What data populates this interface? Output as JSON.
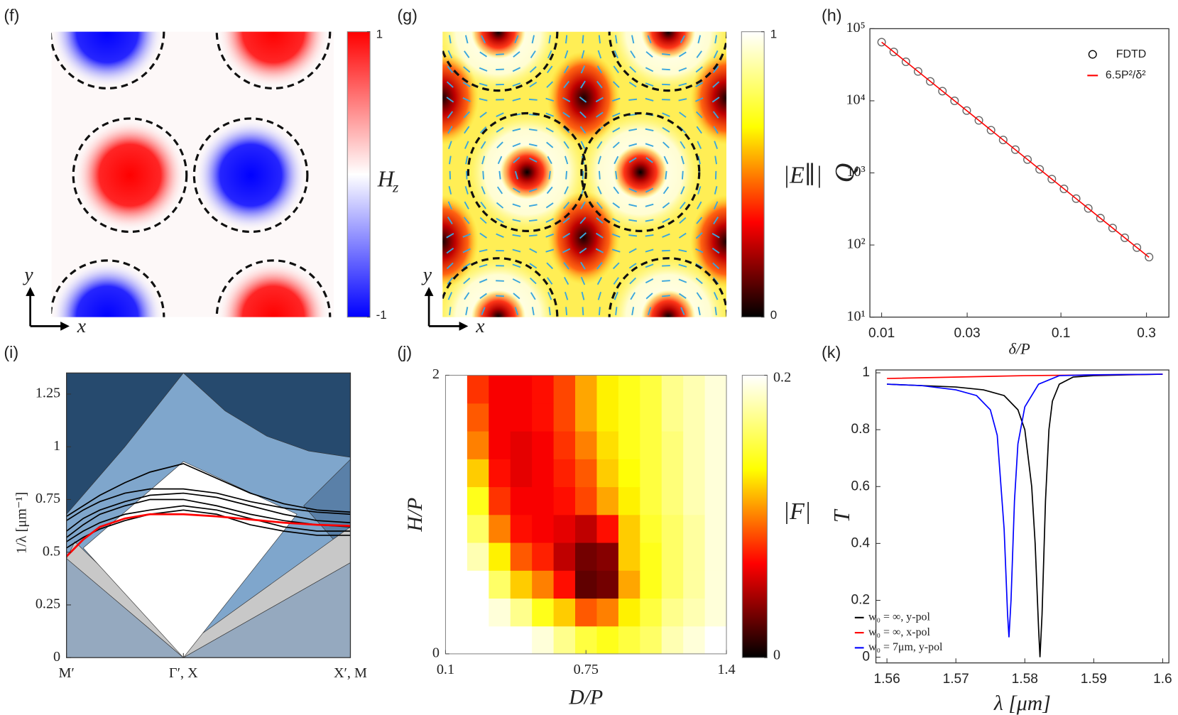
{
  "chart_data": [
    {
      "type": "field",
      "panel_label": "(f)",
      "x_label": "x",
      "y_label": "y",
      "colorbar": {
        "label": "H",
        "label_sub": "z",
        "lim": [
          -1,
          1
        ],
        "ticks": [
          -1,
          1
        ],
        "colors": [
          "#0000ff",
          "#ffffff",
          "#ff0000"
        ]
      }
    },
    {
      "type": "field",
      "panel_label": "(g)",
      "x_label": "x",
      "y_label": "y",
      "colorbar": {
        "label": "|E∥|",
        "lim": [
          0,
          1
        ],
        "ticks": [
          0,
          1
        ],
        "colors": [
          "#000000",
          "#ff0000",
          "#ffff00",
          "#ffffff"
        ]
      }
    },
    {
      "type": "scatter",
      "panel_label": "(h)",
      "x_label": "δ/P",
      "y_label": "Q",
      "log_x": true,
      "log_y": true,
      "xlim": [
        0.0086,
        0.4
      ],
      "ylim": [
        10,
        100000
      ],
      "xticks": [
        0.01,
        0.03,
        0.1,
        0.3
      ],
      "yticks": [
        {
          "value": 10,
          "label": "10¹"
        },
        {
          "value": 100,
          "label": "10²"
        },
        {
          "value": 1000,
          "label": "10³"
        },
        {
          "value": 10000,
          "label": "10⁴"
        },
        {
          "value": 100000,
          "label": "10⁵"
        }
      ],
      "legend": "upper right",
      "series": [
        {
          "name": "FDTD",
          "mode": "markers",
          "color": "#666666",
          "x": [
            0.01,
            0.01169,
            0.01366,
            0.01597,
            0.01867,
            0.02183,
            0.02551,
            0.02982,
            0.03486,
            0.04075,
            0.04764,
            0.05568,
            0.06509,
            0.07609,
            0.08896,
            0.104,
            0.1216,
            0.1421,
            0.1661,
            0.1942,
            0.227,
            0.2653,
            0.3101
          ],
          "values": [
            65000,
            47600,
            34800,
            25500,
            18600,
            13600,
            9990,
            7310,
            5350,
            3910,
            2860,
            2100,
            1530,
            1120,
            821,
            601,
            440,
            322,
            236,
            172,
            126,
            92,
            68
          ]
        },
        {
          "name": "6.5P²/δ²",
          "mode": "line",
          "color": "#ff0000",
          "x": [
            0.01,
            0.31
          ],
          "values": [
            65000,
            67.6
          ]
        }
      ]
    },
    {
      "type": "line",
      "panel_label": "(i)",
      "y_label": "1/λ [μm⁻¹]",
      "xlim": [
        0,
        1.7
      ],
      "ylim": [
        0,
        1.35
      ],
      "xticks": [
        {
          "value": 0,
          "label": "M′"
        },
        {
          "value": 0.7,
          "label": "Γ′, X"
        },
        {
          "value": 1.7,
          "label": "X′, M"
        }
      ],
      "yticks": [
        0,
        0.25,
        0.5,
        0.75,
        1,
        1.25
      ],
      "regions": [
        {
          "color": "#264a6e",
          "x": [
            0,
            1.7,
            1.7,
            0
          ],
          "values": [
            0,
            0,
            1.35,
            1.35
          ]
        },
        {
          "color": "#7fa6cc",
          "x": [
            0,
            0.35,
            0.7,
            0.95,
            1.2,
            1.45,
            1.7,
            1.7,
            0
          ],
          "values": [
            0.68,
            1.0,
            1.35,
            1.17,
            1.05,
            0.98,
            0.95,
            0,
            0
          ]
        },
        {
          "color": "#5a80a8",
          "x": [
            1.7,
            1.7,
            1.42
          ],
          "values": [
            0.94,
            0.47,
            0.72
          ]
        },
        {
          "color": "#c8c8c8",
          "x": [
            0,
            0.7,
            1.7,
            1.7,
            0.7,
            0.05
          ],
          "values": [
            0.47,
            0,
            0.45,
            0.62,
            0.05,
            0.55
          ]
        },
        {
          "color": "#ffffff",
          "x": [
            0.7,
            1.38,
            0.7,
            0.1
          ],
          "values": [
            0,
            0.68,
            0.93,
            0.52
          ]
        },
        {
          "color": "#95a9bf",
          "x": [
            0,
            0,
            0.7,
            1.7,
            1.7
          ],
          "values": [
            0,
            0.47,
            0,
            0.45,
            0
          ]
        }
      ],
      "x": [
        0,
        0.1,
        0.2,
        0.35,
        0.5,
        0.7,
        0.9,
        1.1,
        1.3,
        1.5,
        1.7
      ],
      "series": [
        {
          "color": "#000000",
          "values": [
            0.67,
            0.72,
            0.77,
            0.83,
            0.88,
            0.92,
            0.85,
            0.78,
            0.73,
            0.7,
            0.69
          ]
        },
        {
          "color": "#000000",
          "values": [
            0.65,
            0.7,
            0.74,
            0.78,
            0.8,
            0.8,
            0.78,
            0.74,
            0.71,
            0.69,
            0.68
          ]
        },
        {
          "color": "#000000",
          "values": [
            0.6,
            0.66,
            0.7,
            0.74,
            0.77,
            0.78,
            0.76,
            0.72,
            0.68,
            0.65,
            0.64
          ]
        },
        {
          "color": "#000000",
          "values": [
            0.57,
            0.63,
            0.68,
            0.72,
            0.75,
            0.75,
            0.72,
            0.68,
            0.65,
            0.63,
            0.62
          ]
        },
        {
          "color": "#000000",
          "values": [
            0.55,
            0.6,
            0.64,
            0.68,
            0.7,
            0.72,
            0.7,
            0.66,
            0.62,
            0.6,
            0.6
          ]
        },
        {
          "color": "#000000",
          "values": [
            0.52,
            0.57,
            0.61,
            0.65,
            0.68,
            0.7,
            0.68,
            0.63,
            0.6,
            0.58,
            0.58
          ]
        },
        {
          "color": "#ff0000",
          "values": [
            0.48,
            0.56,
            0.62,
            0.66,
            0.68,
            0.68,
            0.67,
            0.655,
            0.64,
            0.63,
            0.625
          ]
        }
      ]
    },
    {
      "type": "heatmap",
      "panel_label": "(j)",
      "x_label": "D/P",
      "y_label": "H/P",
      "xlim": [
        0.1,
        1.4
      ],
      "ylim": [
        0,
        2
      ],
      "xticks": [
        0.1,
        0.75,
        1.4
      ],
      "yticks": [
        0,
        2
      ],
      "x": [
        0.15,
        0.25,
        0.35,
        0.45,
        0.55,
        0.65,
        0.75,
        0.85,
        0.95,
        1.05,
        1.15,
        1.25,
        1.35
      ],
      "y": [
        0.1,
        0.3,
        0.5,
        0.7,
        0.9,
        1.1,
        1.3,
        1.5,
        1.7,
        1.9
      ],
      "z": [
        [
          0.2,
          0.2,
          0.2,
          0.2,
          0.19,
          0.17,
          0.15,
          0.14,
          0.15,
          0.16,
          0.18,
          0.19,
          0.2
        ],
        [
          0.2,
          0.2,
          0.19,
          0.17,
          0.14,
          0.12,
          0.09,
          0.1,
          0.13,
          0.15,
          0.17,
          0.18,
          0.19
        ],
        [
          0.2,
          0.2,
          0.16,
          0.12,
          0.1,
          0.07,
          0.025,
          0.03,
          0.11,
          0.14,
          0.16,
          0.175,
          0.19
        ],
        [
          0.2,
          0.18,
          0.13,
          0.09,
          0.075,
          0.05,
          0.03,
          0.035,
          0.12,
          0.14,
          0.16,
          0.175,
          0.19
        ],
        [
          0.2,
          0.16,
          0.1,
          0.07,
          0.065,
          0.06,
          0.05,
          0.07,
          0.12,
          0.145,
          0.16,
          0.175,
          0.19
        ],
        [
          0.2,
          0.14,
          0.08,
          0.065,
          0.065,
          0.07,
          0.085,
          0.11,
          0.13,
          0.15,
          0.165,
          0.18,
          0.19
        ],
        [
          0.2,
          0.12,
          0.07,
          0.06,
          0.065,
          0.075,
          0.09,
          0.12,
          0.135,
          0.15,
          0.165,
          0.18,
          0.19
        ],
        [
          0.2,
          0.1,
          0.065,
          0.06,
          0.065,
          0.08,
          0.1,
          0.125,
          0.14,
          0.15,
          0.165,
          0.18,
          0.19
        ],
        [
          0.2,
          0.09,
          0.065,
          0.065,
          0.07,
          0.085,
          0.11,
          0.13,
          0.14,
          0.15,
          0.17,
          0.18,
          0.19
        ],
        [
          0.2,
          0.08,
          0.065,
          0.065,
          0.07,
          0.085,
          0.11,
          0.13,
          0.14,
          0.15,
          0.17,
          0.18,
          0.19
        ]
      ],
      "colorbar": {
        "label": "|F|",
        "lim": [
          0,
          0.2
        ],
        "ticks": [
          0,
          0.2
        ],
        "colors": [
          "#000000",
          "#ff0000",
          "#ffff00",
          "#ffffff"
        ]
      }
    },
    {
      "type": "line",
      "panel_label": "(k)",
      "x_label": "λ [μm]",
      "y_label": "T",
      "xlim": [
        1.5584,
        1.6009
      ],
      "ylim": [
        -0.02,
        1.01
      ],
      "xticks": [
        1.56,
        1.57,
        1.58,
        1.59,
        1.6
      ],
      "yticks": [
        0,
        0.2,
        0.4,
        0.6,
        0.8,
        1
      ],
      "legend": "lower left",
      "series": [
        {
          "name": "w₀ = ∞, y-pol",
          "color": "#000000",
          "x": [
            1.56,
            1.565,
            1.57,
            1.574,
            1.577,
            1.579,
            1.58,
            1.581,
            1.5815,
            1.582,
            1.5822,
            1.5825,
            1.583,
            1.5835,
            1.584,
            1.585,
            1.587,
            1.59,
            1.595,
            1.6
          ],
          "values": [
            0.96,
            0.955,
            0.95,
            0.94,
            0.92,
            0.87,
            0.8,
            0.6,
            0.4,
            0.1,
            0.0,
            0.15,
            0.55,
            0.8,
            0.9,
            0.96,
            0.985,
            0.99,
            0.993,
            0.995
          ]
        },
        {
          "name": "w₀ = ∞, x-pol",
          "color": "#ff0000",
          "x": [
            1.56,
            1.58,
            1.6
          ],
          "values": [
            0.98,
            0.99,
            0.995
          ]
        },
        {
          "name": "w₀ = 7μm, y-pol",
          "color": "#0000ff",
          "x": [
            1.56,
            1.565,
            1.57,
            1.573,
            1.575,
            1.576,
            1.577,
            1.5775,
            1.5777,
            1.578,
            1.5785,
            1.579,
            1.58,
            1.582,
            1.585,
            1.59,
            1.6
          ],
          "values": [
            0.96,
            0.955,
            0.94,
            0.92,
            0.87,
            0.78,
            0.45,
            0.15,
            0.07,
            0.2,
            0.55,
            0.75,
            0.88,
            0.96,
            0.99,
            0.993,
            0.995
          ]
        }
      ]
    }
  ]
}
